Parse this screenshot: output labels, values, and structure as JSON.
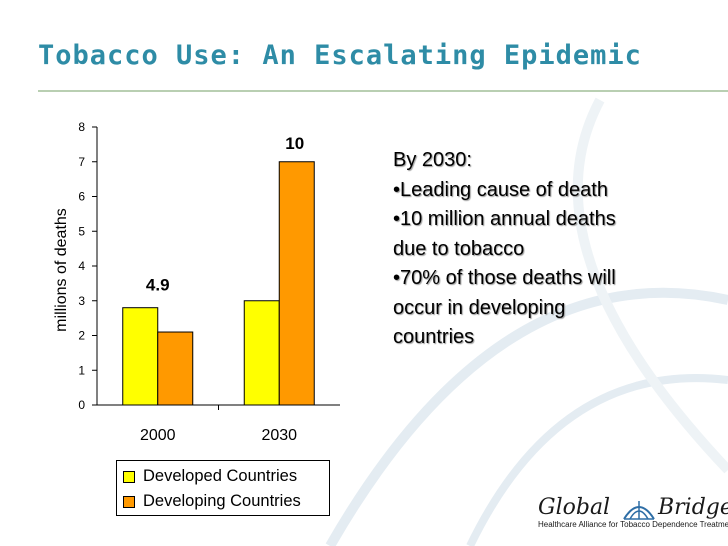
{
  "slide": {
    "title": "Tobacco Use: An Escalating Epidemic",
    "accent_color": "#2e8ca6"
  },
  "notes": {
    "heading": "By 2030:",
    "bullets": [
      "•Leading cause of death",
      "•10 million annual deaths due to tobacco",
      "•70% of those deaths will occur in developing countries"
    ],
    "lines": [
      "•Leading cause of death",
      "•10 million annual deaths",
      "due to tobacco",
      "•70% of those deaths will",
      "occur in developing",
      "countries"
    ]
  },
  "logo": {
    "word_left": "Global",
    "word_right": "Bridges",
    "tagline": "Healthcare Alliance for Tobacco Dependence Treatment",
    "icon": "bridge-arc-icon"
  },
  "chart_data": {
    "type": "bar",
    "categories": [
      "2000",
      "2030"
    ],
    "series": [
      {
        "name": "Developed Countries",
        "values": [
          2.8,
          3.0
        ],
        "color": "#ffff00"
      },
      {
        "name": "Developing Countries",
        "values": [
          2.1,
          7.0
        ],
        "color": "#ff9900"
      }
    ],
    "annotations": [
      {
        "category": "2000",
        "text": "4.9"
      },
      {
        "category": "2030",
        "text": "10"
      }
    ],
    "ylabel": "millions of deaths",
    "ylim": [
      0,
      8
    ],
    "yticks": [
      "0",
      "1",
      "2",
      "3",
      "4",
      "5",
      "6",
      "7",
      "8"
    ],
    "legend_position": "bottom",
    "grid": false
  }
}
